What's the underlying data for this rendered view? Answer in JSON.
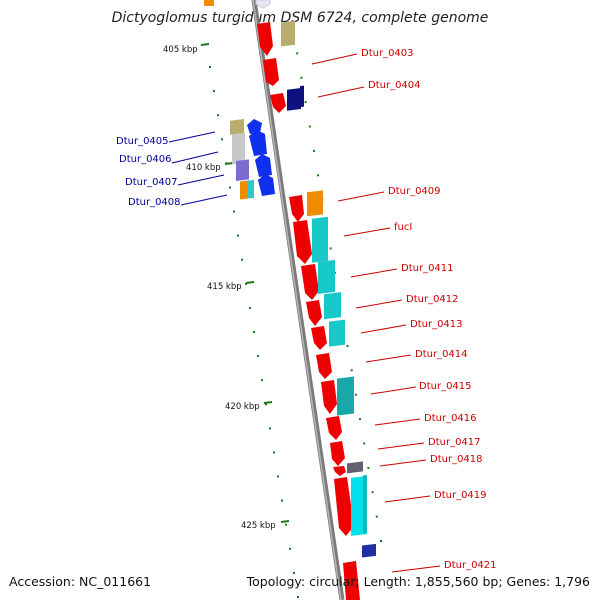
{
  "title": "Dictyoglomus turgidum DSM 6724, complete genome",
  "footer": {
    "accession": "Accession: NC_011661",
    "summary": "Topology: circular; Length: 1,855,560 bp; Genes: 1,796"
  },
  "colors": {
    "forward_label": "#cc0000",
    "reverse_label": "#000099",
    "backbone": "#8c8c8c",
    "tick": "#1a7a1a"
  },
  "ticks": [
    "405 kbp",
    "410 kbp",
    "415 kbp",
    "420 kbp",
    "425 kbp"
  ],
  "labels_right": [
    "Dtur_0403",
    "Dtur_0404",
    "Dtur_0409",
    "fucI",
    "Dtur_0411",
    "Dtur_0412",
    "Dtur_0413",
    "Dtur_0414",
    "Dtur_0415",
    "Dtur_0416",
    "Dtur_0417",
    "Dtur_0418",
    "Dtur_0419",
    "Dtur_0421"
  ],
  "labels_left": [
    "Dtur_0405",
    "Dtur_0406",
    "Dtur_0407",
    "Dtur_0408"
  ]
}
